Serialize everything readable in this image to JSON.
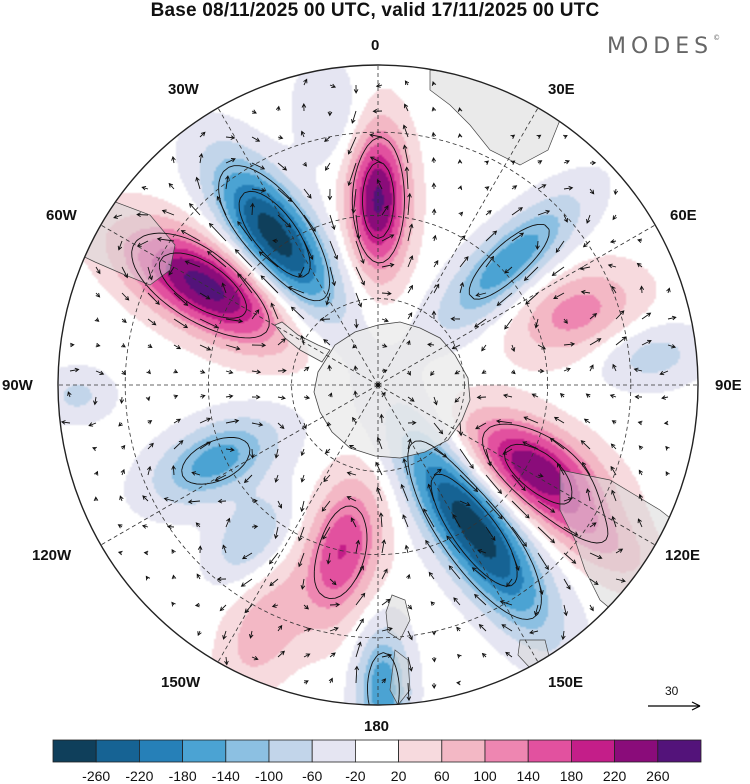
{
  "title": "Base 08/11/2025 00 UTC, valid 17/11/2025 00 UTC",
  "logo": "MODES",
  "logo_mark": "©",
  "longitude_labels": {
    "lon_0": "0",
    "lon_30e": "30E",
    "lon_60e": "60E",
    "lon_90e": "90E",
    "lon_120e": "120E",
    "lon_150e": "150E",
    "lon_180": "180",
    "lon_150w": "150W",
    "lon_120w": "120W",
    "lon_90w": "90W",
    "lon_60w": "60W",
    "lon_30w": "30W"
  },
  "colorbar": {
    "colors": [
      "#0f3f5b",
      "#166394",
      "#2680b8",
      "#4ba3d3",
      "#8cc0e2",
      "#c2d5ea",
      "#e5e5f2",
      "#ffffff",
      "#f7dade",
      "#f3b8c5",
      "#ee86b1",
      "#e2519f",
      "#c41e89",
      "#8a0c7a",
      "#53137a"
    ],
    "labels": [
      "-260",
      "-220",
      "-180",
      "-140",
      "-100",
      "-60",
      "-20",
      "20",
      "60",
      "100",
      "140",
      "180",
      "220",
      "260"
    ]
  },
  "reference_vector": {
    "value": "30",
    "color": "#000000"
  },
  "map_colors": {
    "land": "#d8d8d8",
    "antarctica": "#e9e9e9",
    "boundary": "#444444",
    "grid": "#333333"
  },
  "chart_data": {
    "type": "heatmap",
    "title": "Base 08/11/2025 00 UTC, valid 17/11/2025 00 UTC",
    "projection": "south polar stereographic",
    "field_levels": [
      -260,
      -220,
      -180,
      -140,
      -100,
      -60,
      -20,
      20,
      60,
      100,
      140,
      180,
      220,
      260
    ],
    "reference_vector": 30,
    "anomaly_centers": [
      {
        "lon": -35,
        "rel_dist": 0.56,
        "amp": -290,
        "ax": 0.2,
        "ay": 0.085,
        "orient_deg": 0
      },
      {
        "lon": 0,
        "rel_dist": 0.58,
        "amp": 270,
        "ax": 0.16,
        "ay": 0.065,
        "orient_deg": 0
      },
      {
        "lon": -60,
        "rel_dist": 0.62,
        "amp": 280,
        "ax": 0.2,
        "ay": 0.09,
        "orient_deg": 0
      },
      {
        "lon": 47,
        "rel_dist": 0.56,
        "amp": -170,
        "ax": 0.2,
        "ay": 0.07,
        "orient_deg": 0
      },
      {
        "lon": 70,
        "rel_dist": 0.66,
        "amp": 120,
        "ax": 0.14,
        "ay": 0.09,
        "orient_deg": 0
      },
      {
        "lon": 84,
        "rel_dist": 0.86,
        "amp": -80,
        "ax": 0.12,
        "ay": 0.07,
        "orient_deg": 0
      },
      {
        "lon": 118,
        "rel_dist": 0.54,
        "amp": 240,
        "ax": 0.17,
        "ay": 0.09,
        "orient_deg": 0
      },
      {
        "lon": 146,
        "rel_dist": 0.53,
        "amp": -290,
        "ax": 0.26,
        "ay": 0.085,
        "orient_deg": 0
      },
      {
        "lon": -168,
        "rel_dist": 0.53,
        "amp": 180,
        "ax": 0.16,
        "ay": 0.08,
        "orient_deg": 0
      },
      {
        "lon": 179,
        "rel_dist": 0.95,
        "amp": -170,
        "ax": 0.14,
        "ay": 0.06,
        "orient_deg": 0
      },
      {
        "lon": -115,
        "rel_dist": 0.56,
        "amp": -160,
        "ax": 0.15,
        "ay": 0.08,
        "orient_deg": 0
      },
      {
        "lon": -140,
        "rel_dist": 0.62,
        "amp": -100,
        "ax": 0.11,
        "ay": 0.07,
        "orient_deg": 0
      },
      {
        "lon": -92,
        "rel_dist": 0.94,
        "amp": -70,
        "ax": 0.08,
        "ay": 0.06,
        "orient_deg": 0
      },
      {
        "lon": 125,
        "rel_dist": 0.82,
        "amp": 100,
        "ax": 0.16,
        "ay": 0.07,
        "orient_deg": 0
      },
      {
        "lon": -155,
        "rel_dist": 0.84,
        "amp": 90,
        "ax": 0.14,
        "ay": 0.08,
        "orient_deg": 0
      },
      {
        "lon": -10,
        "rel_dist": 0.86,
        "amp": -60,
        "ax": 0.12,
        "ay": 0.08,
        "orient_deg": 0
      }
    ]
  }
}
